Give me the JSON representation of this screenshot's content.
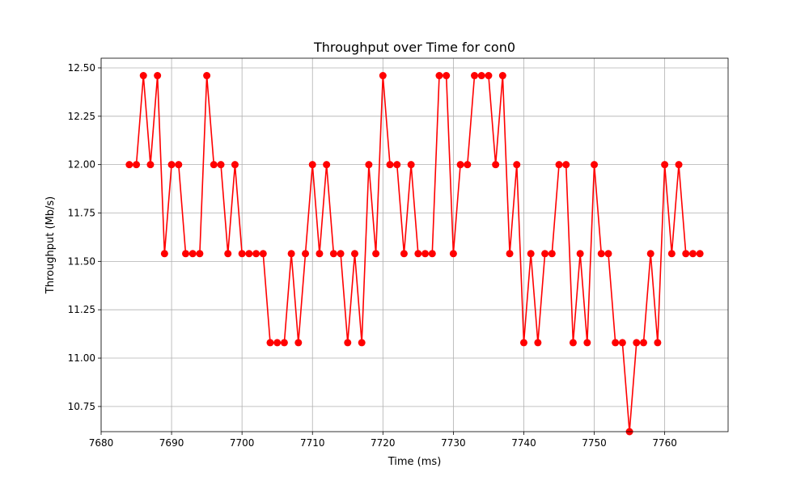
{
  "chart_data": {
    "type": "line",
    "title": "Throughput over Time for con0",
    "xlabel": "Time (ms)",
    "ylabel": "Throughput (Mb/s)",
    "xlim": [
      7680,
      7769
    ],
    "ylim": [
      10.62,
      12.55
    ],
    "xticks": [
      7680,
      7690,
      7700,
      7710,
      7720,
      7730,
      7740,
      7750,
      7760
    ],
    "xtick_labels": [
      "7680",
      "7690",
      "7700",
      "7710",
      "7720",
      "7730",
      "7740",
      "7750",
      "7760"
    ],
    "yticks": [
      10.75,
      11.0,
      11.25,
      11.5,
      11.75,
      12.0,
      12.25,
      12.5
    ],
    "ytick_labels": [
      "10.75",
      "11.00",
      "11.25",
      "11.50",
      "11.75",
      "12.00",
      "12.25",
      "12.50"
    ],
    "grid": true,
    "series": [
      {
        "color": "#ff0000",
        "marker": "circle",
        "x": [
          7684,
          7685,
          7686,
          7687,
          7688,
          7689,
          7690,
          7691,
          7692,
          7693,
          7694,
          7695,
          7696,
          7697,
          7698,
          7699,
          7700,
          7701,
          7702,
          7703,
          7704,
          7705,
          7706,
          7707,
          7708,
          7709,
          7710,
          7711,
          7712,
          7713,
          7714,
          7715,
          7716,
          7717,
          7718,
          7719,
          7720,
          7721,
          7722,
          7723,
          7724,
          7725,
          7726,
          7727,
          7728,
          7729,
          7730,
          7731,
          7732,
          7733,
          7734,
          7735,
          7736,
          7737,
          7738,
          7739,
          7740,
          7741,
          7742,
          7743,
          7744,
          7745,
          7746,
          7747,
          7748,
          7749,
          7750,
          7751,
          7752,
          7753,
          7754,
          7755,
          7756,
          7757,
          7758,
          7759,
          7760,
          7761,
          7762,
          7763,
          7764,
          7765
        ],
        "y": [
          12.0,
          12.0,
          12.46,
          12.0,
          12.46,
          11.54,
          12.0,
          12.0,
          11.54,
          11.54,
          11.54,
          12.46,
          12.0,
          12.0,
          11.54,
          12.0,
          11.54,
          11.54,
          11.54,
          11.54,
          11.08,
          11.08,
          11.08,
          11.54,
          11.08,
          11.54,
          12.0,
          11.54,
          12.0,
          11.54,
          11.54,
          11.08,
          11.54,
          11.08,
          12.0,
          11.54,
          12.46,
          12.0,
          12.0,
          11.54,
          12.0,
          11.54,
          11.54,
          11.54,
          12.46,
          12.46,
          11.54,
          12.0,
          12.0,
          12.46,
          12.46,
          12.46,
          12.0,
          12.46,
          11.54,
          12.0,
          11.08,
          11.54,
          11.08,
          11.54,
          11.54,
          12.0,
          12.0,
          11.08,
          11.54,
          11.08,
          12.0,
          11.54,
          11.54,
          11.08,
          11.08,
          10.62,
          11.08,
          11.08,
          11.54,
          11.08,
          12.0,
          11.54,
          12.0,
          11.54,
          11.54,
          11.54
        ]
      }
    ]
  }
}
